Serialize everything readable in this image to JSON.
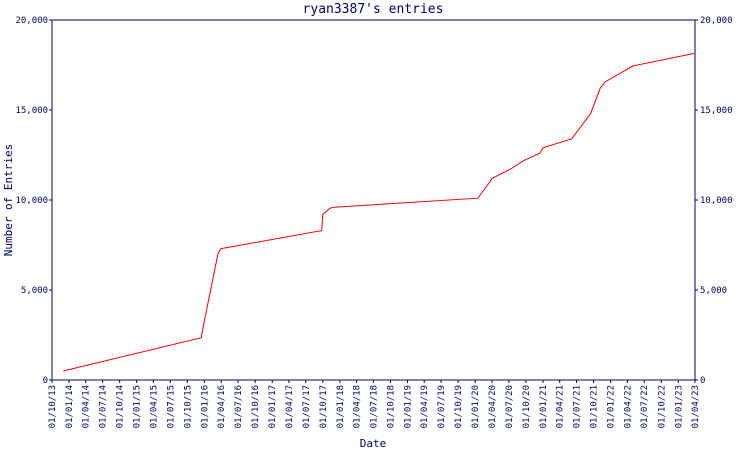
{
  "chart_data": {
    "type": "line",
    "title": "ryan3387's entries",
    "x_label": "Date",
    "y_label": "Number of Entries",
    "x": [
      "01/12/13",
      "15/12/15",
      "01/01/16",
      "15/03/16",
      "01/04/16",
      "25/09/17",
      "01/10/17",
      "10/11/17",
      "01/12/17",
      "15/01/20",
      "20/03/20",
      "01/04/20",
      "15/07/20",
      "20/09/20",
      "15/12/20",
      "01/01/21",
      "05/06/21",
      "15/09/21",
      "05/11/21",
      "01/12/21",
      "01/05/22",
      "01/04/23"
    ],
    "series": [
      {
        "name": "entries",
        "color": "#ff0000",
        "values": [
          500,
          2350,
          3300,
          7050,
          7300,
          8300,
          9200,
          9550,
          9600,
          10100,
          11000,
          11200,
          11750,
          12200,
          12600,
          12900,
          13400,
          14800,
          16200,
          16550,
          17450,
          18150
        ]
      }
    ],
    "xlim": [
      "01/10/13",
      "01/04/23"
    ],
    "xticks": [
      "01/10/13",
      "01/01/14",
      "01/04/14",
      "01/07/14",
      "01/10/14",
      "01/01/15",
      "01/04/15",
      "01/07/15",
      "01/10/15",
      "01/01/16",
      "01/04/16",
      "01/07/16",
      "01/10/16",
      "01/01/17",
      "01/04/17",
      "01/07/17",
      "01/10/17",
      "01/01/18",
      "01/04/18",
      "01/07/18",
      "01/10/18",
      "01/01/19",
      "01/04/19",
      "01/07/19",
      "01/10/19",
      "01/01/20",
      "01/04/20",
      "01/07/20",
      "01/10/20",
      "01/01/21",
      "01/04/21",
      "01/07/21",
      "01/10/21",
      "01/01/22",
      "01/04/22",
      "01/07/22",
      "01/10/22",
      "01/01/23",
      "01/04/23"
    ],
    "ylim": [
      0,
      20000
    ],
    "yticks": [
      0,
      {
        "value": 5000,
        "label": "5,000"
      },
      {
        "value": 10000,
        "label": "10,000"
      },
      {
        "value": 15000,
        "label": "15,000"
      },
      {
        "value": 20000,
        "label": "20,000"
      }
    ],
    "right_axis": true,
    "grid": false
  }
}
